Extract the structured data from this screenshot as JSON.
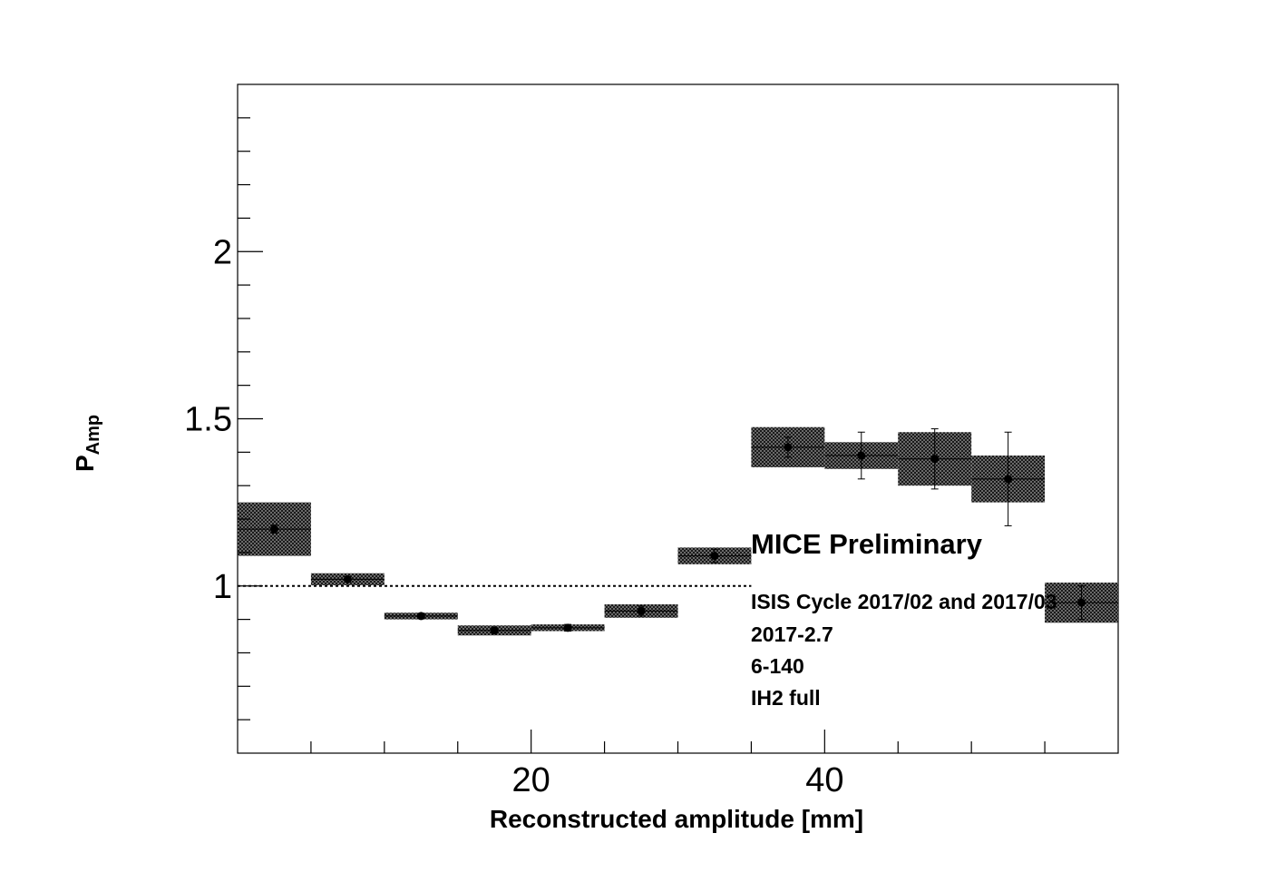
{
  "chart_data": {
    "type": "scatter",
    "xlabel": "Reconstructed amplitude [mm]",
    "ylabel_main": "P",
    "ylabel_sub": "Amp",
    "xlim": [
      0,
      60
    ],
    "ylim": [
      0.5,
      2.5
    ],
    "x_ticks": [
      {
        "value": 20,
        "label": "20"
      },
      {
        "value": 40,
        "label": "40"
      }
    ],
    "y_ticks": [
      {
        "value": 1,
        "label": "1"
      },
      {
        "value": 1.5,
        "label": "1.5"
      },
      {
        "value": 2,
        "label": "2"
      }
    ],
    "reference_line": 1,
    "series": [
      {
        "points": [
          {
            "x": 2.5,
            "y": 1.17,
            "err": 0.012,
            "sys": 0.08
          },
          {
            "x": 7.5,
            "y": 1.02,
            "err": 0.008,
            "sys": 0.018
          },
          {
            "x": 12.5,
            "y": 0.91,
            "err": 0.008,
            "sys": 0.01
          },
          {
            "x": 17.5,
            "y": 0.867,
            "err": 0.008,
            "sys": 0.015
          },
          {
            "x": 22.5,
            "y": 0.875,
            "err": 0.01,
            "sys": 0.01
          },
          {
            "x": 27.5,
            "y": 0.925,
            "err": 0.015,
            "sys": 0.02
          },
          {
            "x": 32.5,
            "y": 1.09,
            "err": 0.02,
            "sys": 0.025
          },
          {
            "x": 37.5,
            "y": 1.415,
            "err": 0.03,
            "sys": 0.06
          },
          {
            "x": 42.5,
            "y": 1.39,
            "err": 0.07,
            "sys": 0.04
          },
          {
            "x": 47.5,
            "y": 1.38,
            "err": 0.09,
            "sys": 0.08
          },
          {
            "x": 52.5,
            "y": 1.32,
            "err": 0.14,
            "sys": 0.07
          },
          {
            "x": 57.5,
            "y": 0.95,
            "err": 0.05,
            "sys": 0.06
          }
        ]
      }
    ],
    "annotations": {
      "title": "MICE Preliminary",
      "lines": [
        "ISIS Cycle 2017/02 and 2017/03",
        "2017-2.7",
        "6-140",
        "IH2 full"
      ]
    }
  }
}
